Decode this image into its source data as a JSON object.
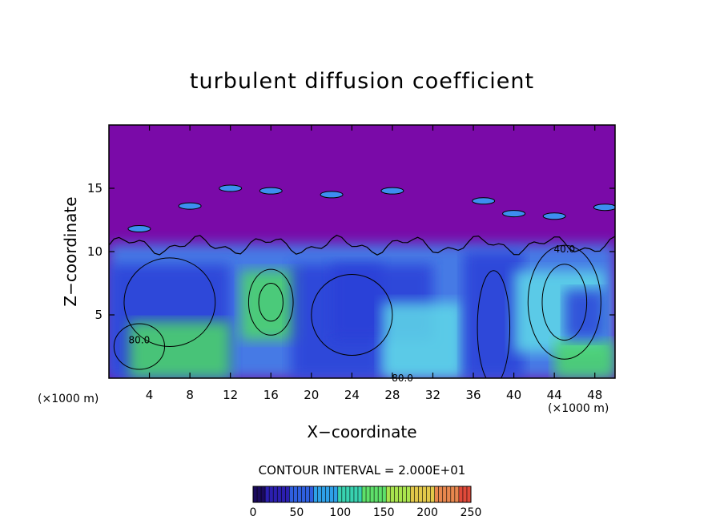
{
  "chart_data": {
    "type": "heatmap",
    "title": "turbulent diffusion coefficient",
    "xlabel": "X−coordinate",
    "ylabel": "Z−coordinate",
    "x_unit_left": "(×1000 m)",
    "x_unit_right": "(×1000 m)",
    "xlim": [
      0,
      50
    ],
    "ylim": [
      0,
      20
    ],
    "x_ticks": [
      4,
      8,
      12,
      16,
      20,
      24,
      28,
      32,
      36,
      40,
      44,
      48
    ],
    "y_ticks": [
      5,
      10,
      15
    ],
    "contour_interval_text": "CONTOUR INTERVAL = 2.000E+01",
    "contour_labels": [
      {
        "text": "80.0",
        "x": 3.0,
        "z": 3.0
      },
      {
        "text": "80.0",
        "x": 29.0,
        "z": 0.0
      },
      {
        "text": "40.0",
        "x": 45.0,
        "z": 10.2
      }
    ],
    "colorbar": {
      "range": [
        0,
        250
      ],
      "ticks": [
        0,
        50,
        100,
        150,
        200,
        250
      ],
      "colors": [
        "#1a0a5e",
        "#2b1fb0",
        "#2f5fe0",
        "#2ea0e8",
        "#38d2b0",
        "#5ee06a",
        "#a9e44e",
        "#e2c84a",
        "#e8874e",
        "#e04a3a"
      ]
    },
    "field_colors": {
      "background": "#7a0aa8",
      "low": "#2a3fd8",
      "mid": "#3d8ef0",
      "high": "#5fd9e8",
      "peak": "#4dd968"
    }
  }
}
